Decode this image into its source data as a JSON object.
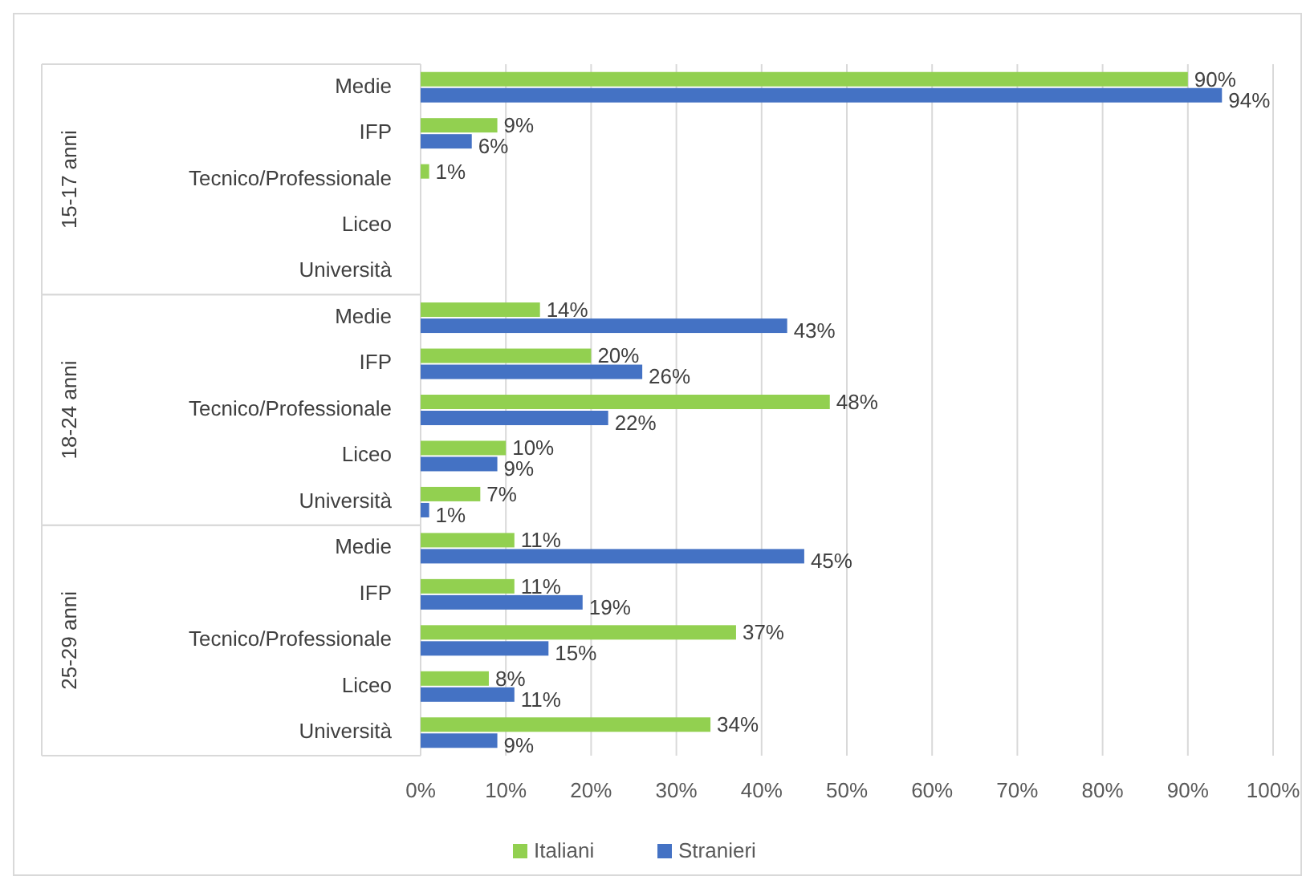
{
  "chart_data": {
    "type": "bar",
    "orientation": "horizontal",
    "categories": [
      "Medie",
      "IFP",
      "Tecnico/Professionale",
      "Liceo",
      "Università",
      "Medie",
      "IFP",
      "Tecnico/Professionale",
      "Liceo",
      "Università",
      "Medie",
      "IFP",
      "Tecnico/Professionale",
      "Liceo",
      "Università"
    ],
    "series": [
      {
        "name": "Italiani",
        "color": "#92d050",
        "values": [
          90,
          9,
          1,
          null,
          null,
          14,
          20,
          48,
          10,
          7,
          11,
          11,
          37,
          8,
          34
        ],
        "value_labels": [
          "90%",
          "9%",
          "1%",
          null,
          null,
          "14%",
          "20%",
          "48%",
          "10%",
          "7%",
          "11%",
          "11%",
          "37%",
          "8%",
          "34%"
        ]
      },
      {
        "name": "Stranieri",
        "color": "#4472c4",
        "values": [
          94,
          6,
          null,
          null,
          null,
          43,
          26,
          22,
          9,
          1,
          45,
          19,
          15,
          11,
          9
        ],
        "value_labels": [
          "94%",
          "6%",
          null,
          null,
          null,
          "43%",
          "26%",
          "22%",
          "9%",
          "1%",
          "45%",
          "19%",
          "15%",
          "11%",
          "9%"
        ]
      }
    ],
    "annotations": [
      "15-17 anni",
      "18-24 anni",
      "25-29 anni"
    ],
    "xlim": [
      0,
      100
    ],
    "xticks": [
      {
        "value": 0,
        "label": "0%"
      },
      {
        "value": 10,
        "label": "10%"
      },
      {
        "value": 20,
        "label": "20%"
      },
      {
        "value": 30,
        "label": "30%"
      },
      {
        "value": 40,
        "label": "40%"
      },
      {
        "value": 50,
        "label": "50%"
      },
      {
        "value": 60,
        "label": "60%"
      },
      {
        "value": 70,
        "label": "70%"
      },
      {
        "value": 80,
        "label": "80%"
      },
      {
        "value": 90,
        "label": "90%"
      },
      {
        "value": 100,
        "label": "100%"
      }
    ],
    "grid": "x",
    "legend": "bottom"
  }
}
